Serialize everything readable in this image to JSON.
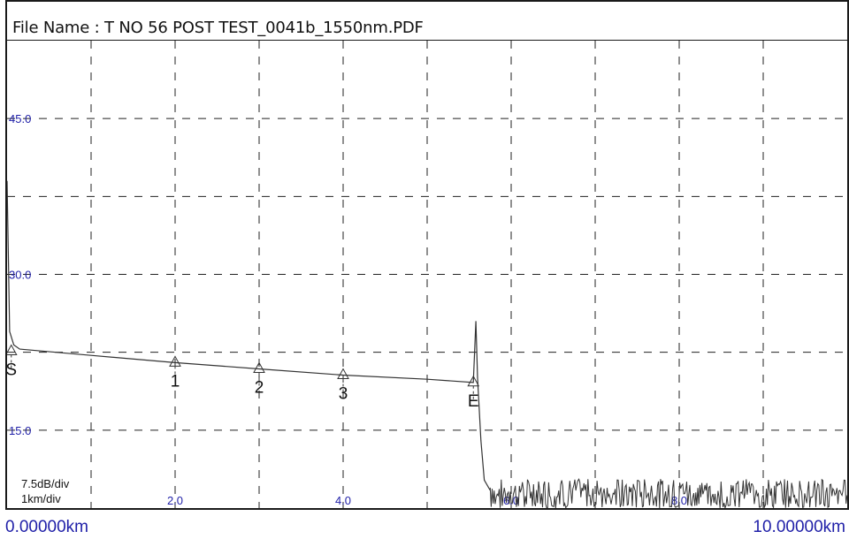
{
  "header": {
    "file_name": "File Name : T NO 56 POST TEST_0041b_1550nm.PDF"
  },
  "scale": {
    "vertical": "7.5dB/div",
    "horizontal": "1km/div"
  },
  "range": {
    "start": "0.00000km",
    "end": "10.00000km"
  },
  "colors": {
    "axis_labels": "#1f1fa8",
    "trace": "#333333",
    "grid": "#222222"
  },
  "chart_data": {
    "type": "line",
    "title": "",
    "xlabel": "",
    "ylabel": "",
    "x_unit": "km",
    "y_unit": "dB",
    "xlim": [
      0,
      10
    ],
    "ylim": [
      7.5,
      52.5
    ],
    "grid": true,
    "x_ticks": [
      {
        "value": 2,
        "label": "2.0"
      },
      {
        "value": 4,
        "label": "4.0"
      },
      {
        "value": 6,
        "label": "6.0"
      },
      {
        "value": 8,
        "label": "8.0"
      }
    ],
    "y_ticks": [
      {
        "value": 15,
        "label": "15.0"
      },
      {
        "value": 30,
        "label": "30.0"
      },
      {
        "value": 45,
        "label": "45.0"
      }
    ],
    "events": [
      {
        "label": "S",
        "x": 0.05,
        "y": 22.6
      },
      {
        "label": "1",
        "x": 2.0,
        "y": 21.5
      },
      {
        "label": "2",
        "x": 3.0,
        "y": 20.9
      },
      {
        "label": "3",
        "x": 4.0,
        "y": 20.3
      },
      {
        "label": "E",
        "x": 5.55,
        "y": 19.6
      }
    ],
    "series": [
      {
        "values": [
          [
            0.0,
            39.0
          ],
          [
            0.03,
            24.5
          ],
          [
            0.08,
            23.2
          ],
          [
            0.15,
            22.8
          ],
          [
            1.0,
            22.2
          ],
          [
            2.0,
            21.5
          ],
          [
            3.0,
            20.9
          ],
          [
            4.0,
            20.3
          ],
          [
            5.0,
            19.9
          ],
          [
            5.55,
            19.6
          ],
          [
            5.58,
            25.5
          ],
          [
            5.6,
            20.0
          ],
          [
            5.64,
            14.0
          ],
          [
            5.68,
            10.2
          ],
          [
            5.75,
            9.2
          ]
        ]
      }
    ]
  }
}
